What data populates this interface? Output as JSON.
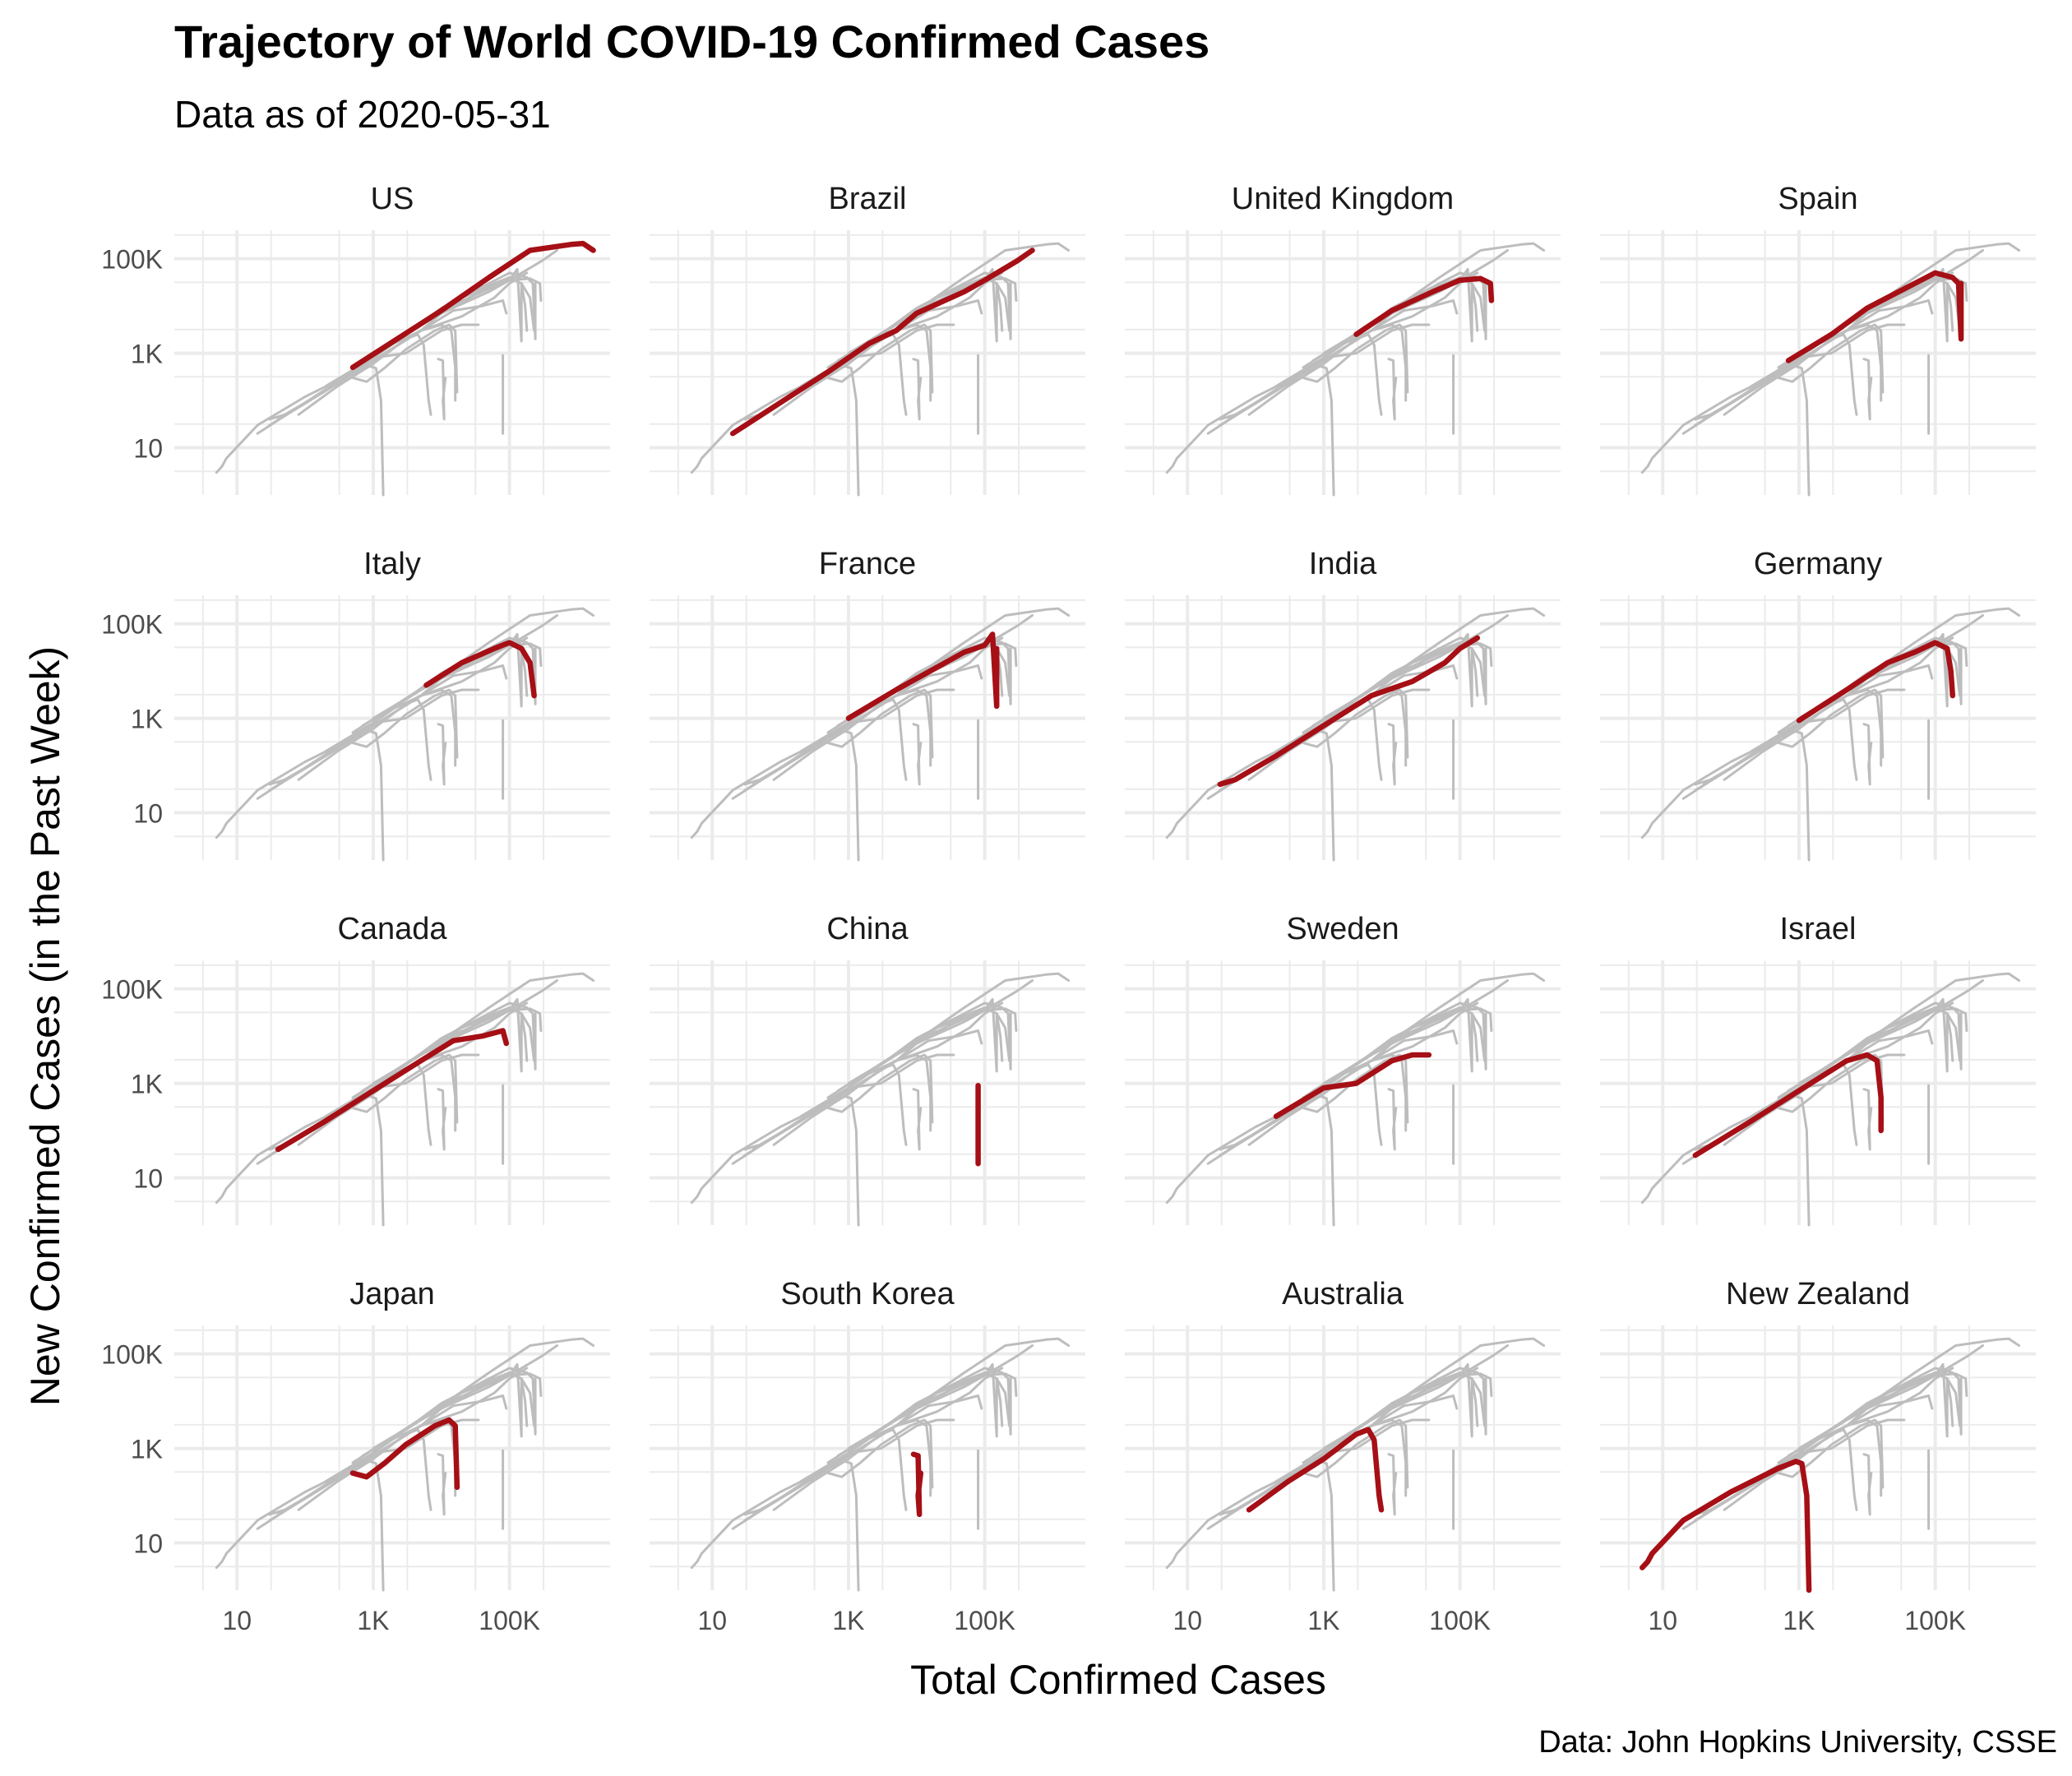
{
  "title": "Trajectory of World COVID-19 Confirmed Cases",
  "subtitle": "Data as of 2020-05-31",
  "caption": "Data: John Hopkins University, CSSE",
  "colors": {
    "highlight": "#a50f15",
    "background_lines": "#bdbdbd",
    "grid": "#ebebeb"
  },
  "chart_data": {
    "type": "line",
    "log_x": true,
    "log_y": true,
    "xlabel": "Total Confirmed Cases",
    "ylabel": "New Confirmed Cases (in the Past Week)",
    "x_ticks": [
      {
        "v": 10,
        "label": "10"
      },
      {
        "v": 1000,
        "label": "1K"
      },
      {
        "v": 100000,
        "label": "100K"
      }
    ],
    "y_ticks": [
      {
        "v": 10,
        "label": "10"
      },
      {
        "v": 1000,
        "label": "1K"
      },
      {
        "v": 100000,
        "label": "100K"
      }
    ],
    "xlim": [
      1.2,
      3000000
    ],
    "ylim": [
      1,
      400000
    ],
    "grid": true,
    "layout": "4x4 facets",
    "background_series": "all countries drawn in grey in every panel",
    "facets": [
      {
        "name": "US",
        "points": [
          [
            500,
            500
          ],
          [
            2000,
            1800
          ],
          [
            10000,
            8000
          ],
          [
            50000,
            40000
          ],
          [
            200000,
            150000
          ],
          [
            800000,
            200000
          ],
          [
            1200000,
            210000
          ],
          [
            1700000,
            150000
          ]
        ]
      },
      {
        "name": "Brazil",
        "points": [
          [
            20,
            20
          ],
          [
            100,
            90
          ],
          [
            500,
            400
          ],
          [
            2000,
            1600
          ],
          [
            5000,
            3000
          ],
          [
            10000,
            7000
          ],
          [
            50000,
            20000
          ],
          [
            100000,
            35000
          ],
          [
            300000,
            90000
          ],
          [
            500000,
            150000
          ]
        ]
      },
      {
        "name": "United Kingdom",
        "points": [
          [
            3000,
            2500
          ],
          [
            10000,
            8000
          ],
          [
            40000,
            20000
          ],
          [
            100000,
            35000
          ],
          [
            200000,
            38000
          ],
          [
            280000,
            30000
          ],
          [
            290000,
            13000
          ]
        ]
      },
      {
        "name": "Spain",
        "points": [
          [
            700,
            700
          ],
          [
            3000,
            2500
          ],
          [
            10000,
            9000
          ],
          [
            50000,
            30000
          ],
          [
            100000,
            50000
          ],
          [
            180000,
            40000
          ],
          [
            220000,
            30000
          ],
          [
            240000,
            2000
          ],
          [
            240000,
            30000
          ]
        ]
      },
      {
        "name": "Italy",
        "points": [
          [
            6000,
            5000
          ],
          [
            20000,
            15000
          ],
          [
            60000,
            30000
          ],
          [
            100000,
            40000
          ],
          [
            150000,
            30000
          ],
          [
            200000,
            15000
          ],
          [
            230000,
            3000
          ]
        ]
      },
      {
        "name": "France",
        "points": [
          [
            1000,
            1000
          ],
          [
            5000,
            4000
          ],
          [
            20000,
            12000
          ],
          [
            50000,
            25000
          ],
          [
            100000,
            35000
          ],
          [
            130000,
            60000
          ],
          [
            150000,
            1800
          ],
          [
            150000,
            30000
          ]
        ]
      },
      {
        "name": "India",
        "points": [
          [
            30,
            40
          ],
          [
            50,
            50
          ],
          [
            200,
            160
          ],
          [
            1000,
            700
          ],
          [
            5000,
            3000
          ],
          [
            20000,
            6000
          ],
          [
            60000,
            15000
          ],
          [
            100000,
            30000
          ],
          [
            180000,
            50000
          ]
        ]
      },
      {
        "name": "Germany",
        "points": [
          [
            1000,
            900
          ],
          [
            5000,
            4000
          ],
          [
            20000,
            15000
          ],
          [
            50000,
            25000
          ],
          [
            100000,
            40000
          ],
          [
            150000,
            30000
          ],
          [
            170000,
            10000
          ],
          [
            180000,
            3000
          ]
        ]
      },
      {
        "name": "Canada",
        "points": [
          [
            40,
            40
          ],
          [
            200,
            160
          ],
          [
            1000,
            700
          ],
          [
            5000,
            3000
          ],
          [
            15000,
            8000
          ],
          [
            40000,
            10000
          ],
          [
            80000,
            13000
          ],
          [
            90000,
            7000
          ]
        ]
      },
      {
        "name": "China",
        "points": [
          [
            80000,
            900
          ],
          [
            80000,
            100
          ],
          [
            80000,
            20
          ]
        ]
      },
      {
        "name": "Sweden",
        "points": [
          [
            200,
            200
          ],
          [
            1000,
            800
          ],
          [
            3000,
            1000
          ],
          [
            10000,
            3000
          ],
          [
            20000,
            4000
          ],
          [
            35000,
            4000
          ]
        ]
      },
      {
        "name": "Israel",
        "points": [
          [
            30,
            30
          ],
          [
            200,
            160
          ],
          [
            1000,
            700
          ],
          [
            5000,
            3000
          ],
          [
            10000,
            4000
          ],
          [
            14000,
            3000
          ],
          [
            16000,
            500
          ],
          [
            16000,
            100
          ]
        ]
      },
      {
        "name": "Japan",
        "points": [
          [
            500,
            300
          ],
          [
            800,
            250
          ],
          [
            1500,
            500
          ],
          [
            3000,
            1200
          ],
          [
            8000,
            3000
          ],
          [
            13000,
            4000
          ],
          [
            16000,
            3000
          ],
          [
            17000,
            150
          ]
        ]
      },
      {
        "name": "South Korea",
        "points": [
          [
            9000,
            750
          ],
          [
            10500,
            700
          ],
          [
            11000,
            40
          ],
          [
            10500,
            100
          ],
          [
            11500,
            300
          ]
        ]
      },
      {
        "name": "Australia",
        "points": [
          [
            80,
            50
          ],
          [
            300,
            200
          ],
          [
            1000,
            600
          ],
          [
            3000,
            2000
          ],
          [
            4500,
            2500
          ],
          [
            5500,
            1500
          ],
          [
            6500,
            100
          ],
          [
            7000,
            50
          ]
        ]
      },
      {
        "name": "New Zealand",
        "points": [
          [
            5,
            3
          ],
          [
            6,
            4
          ],
          [
            7,
            6
          ],
          [
            20,
            30
          ],
          [
            100,
            120
          ],
          [
            500,
            380
          ],
          [
            900,
            530
          ],
          [
            1100,
            480
          ],
          [
            1300,
            100
          ],
          [
            1400,
            1
          ]
        ]
      }
    ]
  }
}
